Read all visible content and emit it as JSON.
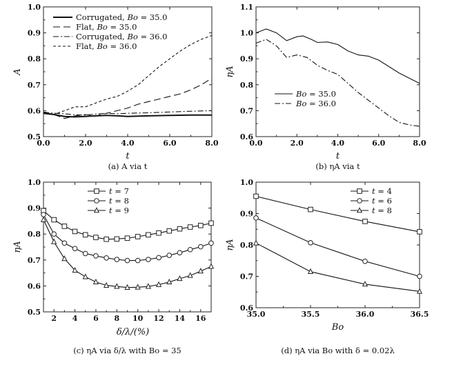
{
  "chart_data": [
    {
      "type": "line",
      "caption": "(a) A via t",
      "xlabel": "t",
      "ylabel": "A",
      "xlim": [
        0,
        8
      ],
      "ylim": [
        0.5,
        1.0
      ],
      "xticks": [
        "0.0",
        "2.0",
        "4.0",
        "6.0",
        "8.0"
      ],
      "yticks": [
        "0.5",
        "0.6",
        "0.7",
        "0.8",
        "0.9",
        "1.0"
      ],
      "legend": "top-left",
      "series": [
        {
          "name": "Corrugated, Bo = 35.0",
          "name_parts": [
            "Corrugated, ",
            "Bo",
            " = 35.0"
          ],
          "style": "solid-thick",
          "x": [
            0,
            0.5,
            1.0,
            1.5,
            2.0,
            2.5,
            3.0,
            3.5,
            4.0,
            5.0,
            6.0,
            7.0,
            8.0
          ],
          "y": [
            0.59,
            0.585,
            0.578,
            0.576,
            0.578,
            0.58,
            0.582,
            0.58,
            0.578,
            0.58,
            0.582,
            0.583,
            0.583
          ]
        },
        {
          "name": "Flat, Bo = 35.0",
          "name_parts": [
            "Flat, ",
            "Bo",
            " = 35.0"
          ],
          "style": "longdash",
          "x": [
            0,
            0.5,
            1.0,
            1.5,
            2.0,
            2.5,
            3.0,
            3.5,
            4.0,
            4.5,
            5.0,
            5.5,
            6.0,
            6.5,
            7.0,
            7.5,
            8.0
          ],
          "y": [
            0.592,
            0.585,
            0.57,
            0.58,
            0.585,
            0.58,
            0.59,
            0.6,
            0.61,
            0.625,
            0.635,
            0.645,
            0.655,
            0.665,
            0.68,
            0.7,
            0.725
          ]
        },
        {
          "name": "Corrugated, Bo = 36.0",
          "name_parts": [
            "Corrugated, ",
            "Bo",
            " = 36.0"
          ],
          "style": "dashdot",
          "x": [
            0,
            0.5,
            1.0,
            1.5,
            2.0,
            2.5,
            3.0,
            3.5,
            4.0,
            5.0,
            6.0,
            7.0,
            8.0
          ],
          "y": [
            0.595,
            0.59,
            0.588,
            0.584,
            0.583,
            0.587,
            0.59,
            0.588,
            0.59,
            0.592,
            0.595,
            0.598,
            0.6
          ]
        },
        {
          "name": "Flat, Bo = 36.0",
          "name_parts": [
            "Flat, ",
            "Bo",
            " = 36.0"
          ],
          "style": "shortdash",
          "x": [
            0,
            0.5,
            1.0,
            1.5,
            2.0,
            2.5,
            3.0,
            3.5,
            4.0,
            4.5,
            5.0,
            5.5,
            6.0,
            6.5,
            7.0,
            7.5,
            8.0
          ],
          "y": [
            0.595,
            0.585,
            0.6,
            0.615,
            0.615,
            0.63,
            0.645,
            0.655,
            0.675,
            0.7,
            0.735,
            0.77,
            0.8,
            0.83,
            0.855,
            0.875,
            0.89
          ]
        }
      ]
    },
    {
      "type": "line",
      "caption": "(b) ηA via t",
      "xlabel": "t",
      "ylabel": "ηA",
      "xlim": [
        0,
        8
      ],
      "ylim": [
        0.6,
        1.1
      ],
      "xticks": [
        "0.0",
        "2.0",
        "4.0",
        "6.0",
        "8.0"
      ],
      "yticks": [
        "0.6",
        "0.7",
        "0.8",
        "0.9",
        "1.0",
        "1.1"
      ],
      "legend": "left-middle",
      "series": [
        {
          "name": "Bo = 35.0",
          "name_parts": [
            "Bo",
            " = 35.0"
          ],
          "style": "solid",
          "x": [
            0,
            0.5,
            1.0,
            1.5,
            2.0,
            2.3,
            2.7,
            3.0,
            3.5,
            4.0,
            4.5,
            5.0,
            5.5,
            6.0,
            6.5,
            7.0,
            7.5,
            8.0
          ],
          "y": [
            1.0,
            1.015,
            1.0,
            0.97,
            0.985,
            0.988,
            0.975,
            0.963,
            0.965,
            0.955,
            0.93,
            0.915,
            0.91,
            0.895,
            0.87,
            0.845,
            0.825,
            0.805
          ]
        },
        {
          "name": "Bo = 36.0",
          "name_parts": [
            "Bo",
            " = 36.0"
          ],
          "style": "dashdot",
          "x": [
            0,
            0.5,
            1.0,
            1.5,
            2.0,
            2.5,
            3.0,
            3.5,
            4.0,
            4.5,
            5.0,
            5.5,
            6.0,
            6.5,
            7.0,
            7.5,
            8.0
          ],
          "y": [
            0.96,
            0.975,
            0.95,
            0.905,
            0.915,
            0.905,
            0.875,
            0.855,
            0.84,
            0.805,
            0.77,
            0.74,
            0.71,
            0.68,
            0.655,
            0.645,
            0.64
          ]
        }
      ]
    },
    {
      "type": "line",
      "caption": "(c) ηA via δ/λ with Bo = 35",
      "xlabel": "δ/λ/(%)",
      "ylabel": "ηA",
      "xlim": [
        1,
        17
      ],
      "ylim": [
        0.5,
        1.0
      ],
      "xticks": [
        "2",
        "4",
        "6",
        "8",
        "10",
        "12",
        "14",
        "16"
      ],
      "yticks": [
        "0.5",
        "0.6",
        "0.7",
        "0.8",
        "0.9",
        "1.0"
      ],
      "legend": "top-center",
      "series": [
        {
          "name": "t = 7",
          "name_parts": [
            "t",
            " = 7"
          ],
          "marker": "square",
          "x": [
            1,
            2,
            3,
            4,
            5,
            6,
            7,
            8,
            9,
            10,
            11,
            12,
            13,
            14,
            15,
            16,
            17
          ],
          "y": [
            0.89,
            0.855,
            0.83,
            0.81,
            0.797,
            0.787,
            0.78,
            0.781,
            0.784,
            0.79,
            0.797,
            0.804,
            0.812,
            0.82,
            0.827,
            0.833,
            0.842
          ]
        },
        {
          "name": "t = 8",
          "name_parts": [
            "t",
            " = 8"
          ],
          "marker": "circle",
          "x": [
            1,
            2,
            3,
            4,
            5,
            6,
            7,
            8,
            9,
            10,
            11,
            12,
            13,
            14,
            15,
            16,
            17
          ],
          "y": [
            0.875,
            0.8,
            0.765,
            0.744,
            0.725,
            0.716,
            0.708,
            0.702,
            0.698,
            0.698,
            0.702,
            0.709,
            0.718,
            0.728,
            0.74,
            0.751,
            0.765
          ]
        },
        {
          "name": "t = 9",
          "name_parts": [
            "t",
            " = 9"
          ],
          "marker": "triangle",
          "x": [
            1,
            2,
            3,
            4,
            5,
            6,
            7,
            8,
            9,
            10,
            11,
            12,
            13,
            14,
            15,
            16,
            17
          ],
          "y": [
            0.855,
            0.77,
            0.705,
            0.66,
            0.635,
            0.615,
            0.602,
            0.598,
            0.594,
            0.595,
            0.598,
            0.605,
            0.615,
            0.628,
            0.64,
            0.657,
            0.675
          ]
        }
      ]
    },
    {
      "type": "line",
      "caption": "(d) ηA via Bo with δ = 0.02λ",
      "xlabel": "Bo",
      "ylabel": "ηA",
      "xlim": [
        35.0,
        36.5
      ],
      "ylim": [
        0.6,
        1.0
      ],
      "xticks": [
        "35.0",
        "35.5",
        "36.0",
        "36.5"
      ],
      "yticks": [
        "0.6",
        "0.7",
        "0.8",
        "0.9",
        "1.0"
      ],
      "legend": "top-center",
      "series": [
        {
          "name": "t = 4",
          "name_parts": [
            "t",
            " = 4"
          ],
          "marker": "square",
          "x": [
            35.0,
            35.5,
            36.0,
            36.5
          ],
          "y": [
            0.955,
            0.913,
            0.875,
            0.842
          ]
        },
        {
          "name": "t = 6",
          "name_parts": [
            "t",
            " = 6"
          ],
          "marker": "circle",
          "x": [
            35.0,
            35.5,
            36.0,
            36.5
          ],
          "y": [
            0.886,
            0.807,
            0.748,
            0.7
          ]
        },
        {
          "name": "t = 8",
          "name_parts": [
            "t",
            " = 8"
          ],
          "marker": "triangle",
          "x": [
            35.0,
            35.5,
            36.0,
            36.5
          ],
          "y": [
            0.806,
            0.715,
            0.675,
            0.652
          ]
        }
      ]
    }
  ]
}
